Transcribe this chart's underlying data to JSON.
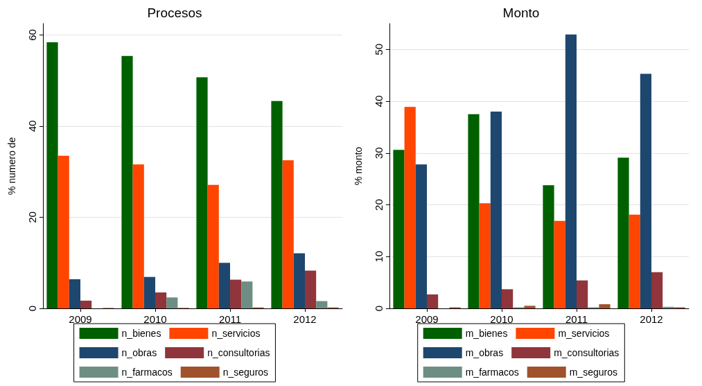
{
  "chart_data": [
    {
      "type": "bar",
      "title": "Procesos",
      "ylabel": "% numero de",
      "categories": [
        "2009",
        "2010",
        "2011",
        "2012"
      ],
      "ylim": [
        0,
        62.5
      ],
      "yticks": [
        0,
        20,
        40,
        60
      ],
      "grid": "y",
      "legend": "bottom",
      "series": [
        {
          "name": "n_bienes",
          "color": "#006000",
          "values": [
            58.4,
            55.4,
            50.7,
            45.5
          ]
        },
        {
          "name": "n_servicios",
          "color": "#ff4500",
          "values": [
            33.5,
            31.6,
            27.1,
            32.5
          ]
        },
        {
          "name": "n_obras",
          "color": "#1e476f",
          "values": [
            6.4,
            6.9,
            10.0,
            12.1
          ]
        },
        {
          "name": "n_consultorias",
          "color": "#90353b",
          "values": [
            1.7,
            3.5,
            6.3,
            8.3
          ]
        },
        {
          "name": "n_farmacos",
          "color": "#6e8e84",
          "values": [
            0,
            2.4,
            5.9,
            1.6
          ]
        },
        {
          "name": "n_seguros",
          "color": "#a0522d",
          "values": [
            0.1,
            0.1,
            0.2,
            0.2
          ]
        }
      ]
    },
    {
      "type": "bar",
      "title": "Monto",
      "ylabel": "% monto",
      "categories": [
        "2009",
        "2010",
        "2011",
        "2012"
      ],
      "ylim": [
        0,
        55
      ],
      "yticks": [
        0,
        10,
        20,
        30,
        40,
        50
      ],
      "grid": "y",
      "legend": "bottom",
      "series": [
        {
          "name": "m_bienes",
          "color": "#006000",
          "values": [
            30.6,
            37.5,
            23.8,
            29.1
          ]
        },
        {
          "name": "m_servicios",
          "color": "#ff4500",
          "values": [
            38.9,
            20.3,
            16.9,
            18.1
          ]
        },
        {
          "name": "m_obras",
          "color": "#1e476f",
          "values": [
            27.8,
            38.0,
            52.9,
            45.3
          ]
        },
        {
          "name": "m_consultorias",
          "color": "#90353b",
          "values": [
            2.7,
            3.7,
            5.4,
            7.0
          ]
        },
        {
          "name": "m_farmacos",
          "color": "#6e8e84",
          "values": [
            0,
            0.2,
            0.2,
            0.3
          ]
        },
        {
          "name": "m_seguros",
          "color": "#a0522d",
          "values": [
            0.2,
            0.5,
            0.8,
            0.2
          ]
        }
      ]
    }
  ]
}
